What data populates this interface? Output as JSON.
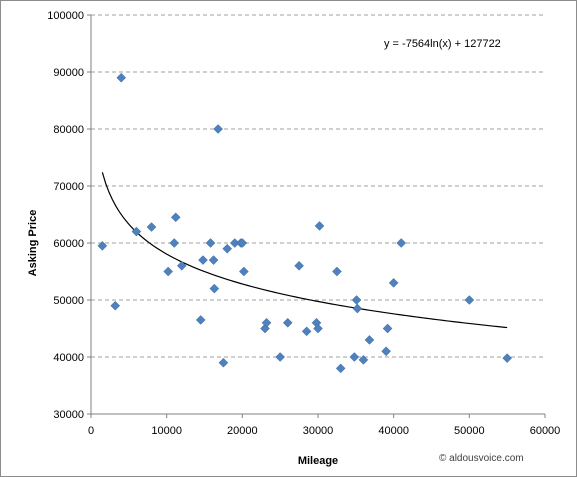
{
  "chart_data": {
    "type": "scatter",
    "title": "",
    "xlabel": "Mileage",
    "ylabel": "Asking Price",
    "xlim": [
      0,
      60000
    ],
    "ylim": [
      30000,
      100000
    ],
    "x_ticks": [
      0,
      10000,
      20000,
      30000,
      40000,
      50000,
      60000
    ],
    "y_ticks": [
      30000,
      40000,
      50000,
      60000,
      70000,
      80000,
      90000,
      100000
    ],
    "grid": "horizontal dashed",
    "legend": "none",
    "marker": "diamond",
    "colors": {
      "points": "#4f81bd",
      "trendline": "#000000",
      "grid": "#808080",
      "axis": "#808080"
    },
    "series": [
      {
        "values_x": [
          1500,
          3200,
          4000,
          6000,
          8000,
          10200,
          11000,
          11200,
          12000,
          14500,
          14800,
          15800,
          16200,
          16300,
          16800,
          17500,
          18000,
          19000,
          19800,
          20000,
          20200,
          23000,
          23200,
          25000,
          26000,
          27500,
          28500,
          29800,
          30000,
          30200,
          32500,
          33000,
          34800,
          35100,
          35200,
          36000,
          36800,
          39000,
          39200,
          40000,
          41000,
          50000,
          55000
        ],
        "values_y": [
          59500,
          49000,
          89000,
          62000,
          62800,
          55000,
          60000,
          64500,
          56000,
          46500,
          57000,
          60000,
          57000,
          52000,
          80000,
          39000,
          59000,
          60000,
          60000,
          60000,
          55000,
          45000,
          46000,
          40000,
          46000,
          56000,
          44500,
          46000,
          45000,
          63000,
          55000,
          38000,
          40000,
          50000,
          48500,
          39500,
          43000,
          41000,
          45000,
          53000,
          60000,
          50000,
          39800
        ]
      }
    ],
    "trendline": {
      "type": "logarithmic",
      "equation_label": "y = -7564ln(x) + 127722",
      "a": -7564,
      "b": 127722,
      "x_range": [
        1500,
        55000
      ]
    },
    "credit": "© aldousvoice.com"
  }
}
